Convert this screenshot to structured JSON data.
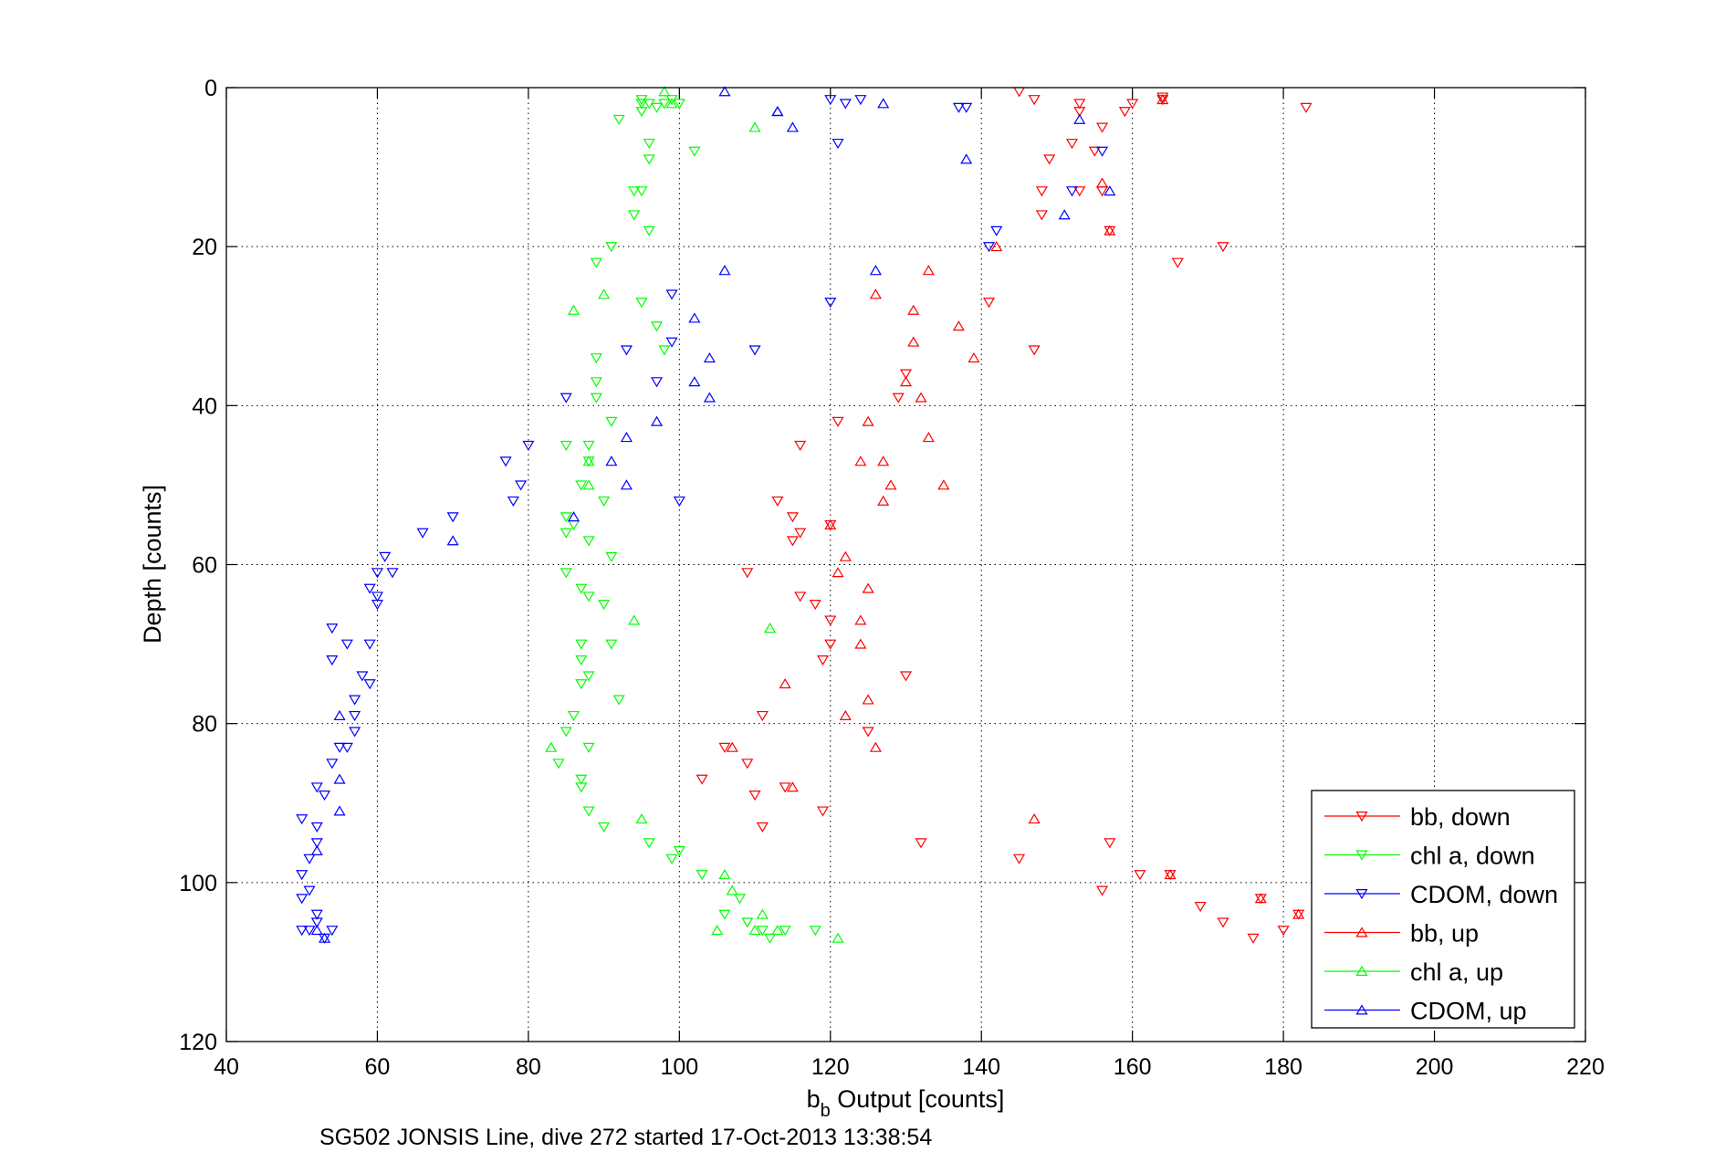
{
  "chart_data": {
    "type": "scatter",
    "xlabel": "b",
    "xlabel_sub": "b",
    "xlabel_rest": " Output [counts]",
    "ylabel": "Depth [counts]",
    "caption": "SG502 JONSIS Line, dive 272 started 17-Oct-2013 13:38:54",
    "xlim": [
      40,
      220
    ],
    "ylim": [
      0,
      120
    ],
    "y_reversed": true,
    "xticks": [
      40,
      60,
      80,
      100,
      120,
      140,
      160,
      180,
      200,
      220
    ],
    "yticks": [
      0,
      20,
      40,
      60,
      80,
      100,
      120
    ],
    "grid": true,
    "legend_position": "bottom-right",
    "series": [
      {
        "name": "bb, down",
        "color": "#ff0000",
        "marker": "triangle-down",
        "points": [
          [
            145,
            0.5
          ],
          [
            147,
            1.5
          ],
          [
            153,
            2
          ],
          [
            153,
            3
          ],
          [
            160,
            2
          ],
          [
            164,
            1.5
          ],
          [
            164,
            1.2
          ],
          [
            183,
            2.5
          ],
          [
            159,
            3
          ],
          [
            156,
            5
          ],
          [
            152,
            7
          ],
          [
            155,
            8
          ],
          [
            149,
            9
          ],
          [
            148,
            13
          ],
          [
            153,
            13
          ],
          [
            156,
            13
          ],
          [
            148,
            16
          ],
          [
            157,
            18
          ],
          [
            172,
            20
          ],
          [
            166,
            22
          ],
          [
            141,
            27
          ],
          [
            147,
            33
          ],
          [
            129,
            39
          ],
          [
            130,
            36
          ],
          [
            121,
            42
          ],
          [
            116,
            45
          ],
          [
            115,
            54
          ],
          [
            115,
            57
          ],
          [
            116,
            56
          ],
          [
            120,
            55
          ],
          [
            109,
            61
          ],
          [
            120,
            67
          ],
          [
            120,
            70
          ],
          [
            119,
            72
          ],
          [
            116,
            64
          ],
          [
            118,
            65
          ],
          [
            111,
            79
          ],
          [
            109,
            85
          ],
          [
            106,
            83
          ],
          [
            103,
            87
          ],
          [
            110,
            89
          ],
          [
            111,
            93
          ],
          [
            119,
            91
          ],
          [
            114,
            88
          ],
          [
            132,
            95
          ],
          [
            145,
            97
          ],
          [
            157,
            95
          ],
          [
            156,
            101
          ],
          [
            161,
            99
          ],
          [
            165,
            99
          ],
          [
            169,
            103
          ],
          [
            172,
            105
          ],
          [
            176,
            107
          ],
          [
            180,
            106
          ],
          [
            182,
            104
          ],
          [
            177,
            102
          ],
          [
            113,
            52
          ],
          [
            130,
            74
          ],
          [
            125,
            81
          ]
        ]
      },
      {
        "name": "chl a, down",
        "color": "#00ff00",
        "marker": "triangle-down",
        "points": [
          [
            95,
            1.5
          ],
          [
            95,
            2
          ],
          [
            95,
            3
          ],
          [
            96,
            2
          ],
          [
            98,
            2
          ],
          [
            99,
            1.5
          ],
          [
            100,
            2
          ],
          [
            97,
            2.5
          ],
          [
            92,
            4
          ],
          [
            96,
            7
          ],
          [
            96,
            9
          ],
          [
            94,
            13
          ],
          [
            95,
            13
          ],
          [
            94,
            16
          ],
          [
            96,
            18
          ],
          [
            91,
            20
          ],
          [
            89,
            22
          ],
          [
            95,
            27
          ],
          [
            97,
            30
          ],
          [
            98,
            33
          ],
          [
            89,
            34
          ],
          [
            89,
            37
          ],
          [
            89,
            39
          ],
          [
            91,
            42
          ],
          [
            88,
            45
          ],
          [
            85,
            45
          ],
          [
            88,
            47
          ],
          [
            87,
            50
          ],
          [
            90,
            52
          ],
          [
            85,
            54
          ],
          [
            86,
            55
          ],
          [
            85,
            56
          ],
          [
            88,
            57
          ],
          [
            91,
            59
          ],
          [
            85,
            61
          ],
          [
            87,
            63
          ],
          [
            90,
            65
          ],
          [
            88,
            64
          ],
          [
            87,
            70
          ],
          [
            91,
            70
          ],
          [
            88,
            74
          ],
          [
            87,
            75
          ],
          [
            87,
            72
          ],
          [
            92,
            77
          ],
          [
            86,
            79
          ],
          [
            85,
            81
          ],
          [
            87,
            87
          ],
          [
            87,
            88
          ],
          [
            88,
            91
          ],
          [
            88,
            83
          ],
          [
            84,
            85
          ],
          [
            90,
            93
          ],
          [
            96,
            95
          ],
          [
            99,
            97
          ],
          [
            103,
            99
          ],
          [
            100,
            96
          ],
          [
            102,
            8
          ],
          [
            106,
            104
          ],
          [
            108,
            102
          ],
          [
            109,
            105
          ],
          [
            111,
            106
          ],
          [
            112,
            107
          ],
          [
            114,
            106
          ],
          [
            118,
            106
          ]
        ]
      },
      {
        "name": "CDOM, down",
        "color": "#0000ff",
        "marker": "triangle-down",
        "points": [
          [
            120,
            1.5
          ],
          [
            122,
            2
          ],
          [
            124,
            1.5
          ],
          [
            137,
            2.5
          ],
          [
            138,
            2.5
          ],
          [
            121,
            7
          ],
          [
            156,
            8
          ],
          [
            152,
            13
          ],
          [
            142,
            18
          ],
          [
            141,
            20
          ],
          [
            120,
            27
          ],
          [
            99,
            26
          ],
          [
            99,
            32
          ],
          [
            93,
            33
          ],
          [
            110,
            33
          ],
          [
            97,
            37
          ],
          [
            85,
            39
          ],
          [
            100,
            52
          ],
          [
            77,
            47
          ],
          [
            78,
            52
          ],
          [
            79,
            50
          ],
          [
            80,
            45
          ],
          [
            70,
            54
          ],
          [
            66,
            56
          ],
          [
            61,
            59
          ],
          [
            62,
            61
          ],
          [
            60,
            61
          ],
          [
            59,
            63
          ],
          [
            60,
            64
          ],
          [
            60,
            65
          ],
          [
            54,
            68
          ],
          [
            56,
            70
          ],
          [
            59,
            70
          ],
          [
            54,
            72
          ],
          [
            58,
            74
          ],
          [
            59,
            75
          ],
          [
            57,
            77
          ],
          [
            57,
            79
          ],
          [
            57,
            81
          ],
          [
            56,
            83
          ],
          [
            54,
            85
          ],
          [
            55,
            83
          ],
          [
            52,
            88
          ],
          [
            53,
            89
          ],
          [
            50,
            92
          ],
          [
            52,
            93
          ],
          [
            51,
            97
          ],
          [
            52,
            95
          ],
          [
            50,
            99
          ],
          [
            51,
            101
          ],
          [
            50,
            102
          ],
          [
            52,
            104
          ],
          [
            52,
            105
          ],
          [
            50,
            106
          ],
          [
            51,
            106
          ],
          [
            53,
            107
          ],
          [
            54,
            106
          ]
        ]
      },
      {
        "name": "bb, up",
        "color": "#ff0000",
        "marker": "triangle-up",
        "points": [
          [
            164,
            1.5
          ],
          [
            157,
            18
          ],
          [
            126,
            26
          ],
          [
            133,
            23
          ],
          [
            131,
            28
          ],
          [
            137,
            30
          ],
          [
            131,
            32
          ],
          [
            139,
            34
          ],
          [
            130,
            37
          ],
          [
            132,
            39
          ],
          [
            125,
            42
          ],
          [
            133,
            44
          ],
          [
            124,
            47
          ],
          [
            127,
            47
          ],
          [
            128,
            50
          ],
          [
            135,
            50
          ],
          [
            127,
            52
          ],
          [
            120,
            55
          ],
          [
            122,
            59
          ],
          [
            121,
            61
          ],
          [
            125,
            63
          ],
          [
            124,
            67
          ],
          [
            124,
            70
          ],
          [
            122,
            79
          ],
          [
            125,
            77
          ],
          [
            126,
            83
          ],
          [
            114,
            75
          ],
          [
            107,
            83
          ],
          [
            115,
            88
          ],
          [
            147,
            92
          ],
          [
            165,
            99
          ],
          [
            177,
            102
          ],
          [
            182,
            104
          ],
          [
            156,
            12
          ],
          [
            142,
            20
          ]
        ]
      },
      {
        "name": "chl a, up",
        "color": "#00ff00",
        "marker": "triangle-up",
        "points": [
          [
            98,
            0.5
          ],
          [
            99,
            2
          ],
          [
            110,
            5
          ],
          [
            86,
            28
          ],
          [
            90,
            26
          ],
          [
            88,
            47
          ],
          [
            88,
            50
          ],
          [
            94,
            67
          ],
          [
            112,
            68
          ],
          [
            83,
            83
          ],
          [
            95,
            92
          ],
          [
            106,
            99
          ],
          [
            107,
            101
          ],
          [
            111,
            104
          ],
          [
            110,
            106
          ],
          [
            113,
            106
          ],
          [
            121,
            107
          ],
          [
            105,
            106
          ]
        ]
      },
      {
        "name": "CDOM, up",
        "color": "#0000ff",
        "marker": "triangle-up",
        "points": [
          [
            106,
            0.5
          ],
          [
            113,
            3
          ],
          [
            115,
            5
          ],
          [
            126,
            23
          ],
          [
            106,
            23
          ],
          [
            102,
            29
          ],
          [
            104,
            34
          ],
          [
            102,
            37
          ],
          [
            104,
            39
          ],
          [
            97,
            42
          ],
          [
            93,
            44
          ],
          [
            91,
            47
          ],
          [
            93,
            50
          ],
          [
            86,
            54
          ],
          [
            138,
            9
          ],
          [
            157,
            13
          ],
          [
            151,
            16
          ],
          [
            153,
            4
          ],
          [
            127,
            2
          ],
          [
            113,
            3
          ],
          [
            70,
            57
          ],
          [
            55,
            79
          ],
          [
            55,
            87
          ],
          [
            55,
            91
          ],
          [
            52,
            96
          ],
          [
            53,
            107
          ],
          [
            52,
            106
          ]
        ]
      }
    ]
  }
}
